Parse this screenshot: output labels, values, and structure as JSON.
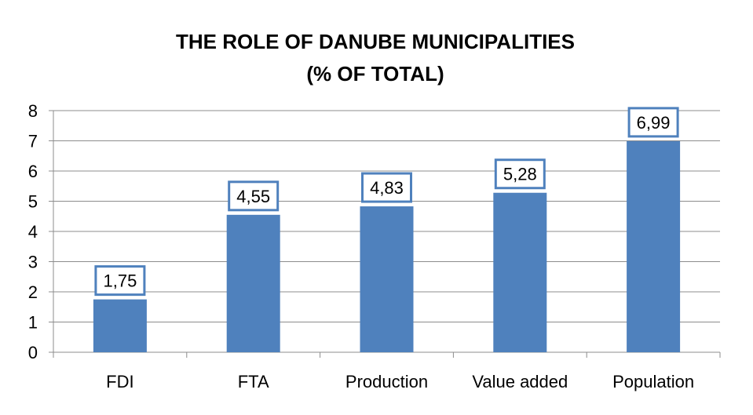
{
  "chart_data": {
    "type": "bar",
    "title_lines": [
      "THE ROLE OF DANUBE MUNICIPALITIES",
      "(% OF TOTAL)"
    ],
    "categories": [
      "FDI",
      "FTA",
      "Production",
      "Value added",
      "Population"
    ],
    "values": [
      1.75,
      4.55,
      4.83,
      5.28,
      6.99
    ],
    "data_labels": [
      "1,75",
      "4,55",
      "4,83",
      "5,28",
      "6,99"
    ],
    "y_ticks": [
      "0",
      "1",
      "2",
      "3",
      "4",
      "5",
      "6",
      "7",
      "8"
    ],
    "ylim": [
      0,
      8
    ],
    "grid": true,
    "legend": "none",
    "bar_color": "#4F81BD",
    "label_border_color": "#4F81BD",
    "gridline_color": "#8C8C8C"
  }
}
